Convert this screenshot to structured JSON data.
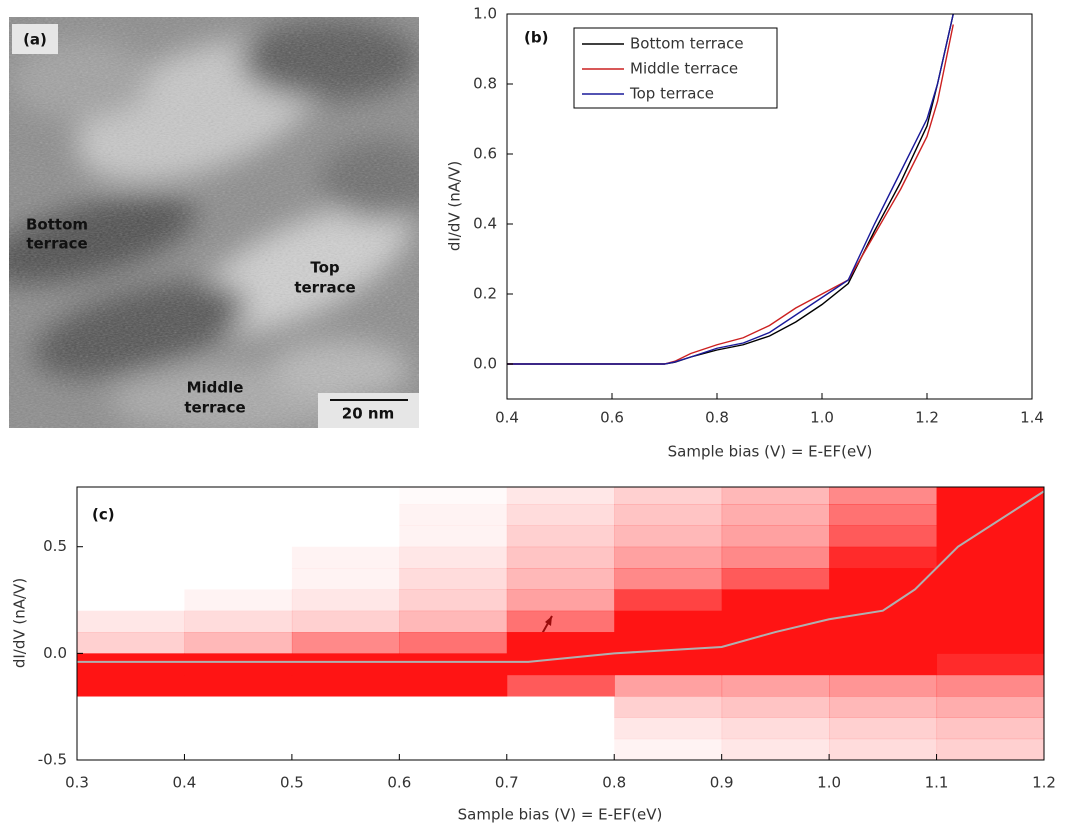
{
  "image_panel": {
    "panel_label": "(a)",
    "annotations": [
      [
        "Bottom",
        "terrace"
      ],
      [
        "Top",
        "terrace"
      ],
      [
        "Middle",
        "terrace"
      ]
    ],
    "scale_bar": "20 nm"
  },
  "chart_data": [
    {
      "type": "line",
      "panel_label": "(b)",
      "xlabel": "Sample bias (V) = E-EF(eV)",
      "ylabel": "dI/dV (nA/V)",
      "x": [
        0.4,
        0.5,
        0.6,
        0.7,
        0.72,
        0.75,
        0.8,
        0.85,
        0.9,
        0.95,
        1.0,
        1.05,
        1.1,
        1.15,
        1.2,
        1.22,
        1.25
      ],
      "series": [
        {
          "name": "Bottom terrace",
          "color": "#000000",
          "values": [
            0,
            0,
            0,
            0,
            0.005,
            0.02,
            0.04,
            0.055,
            0.08,
            0.12,
            0.17,
            0.23,
            0.38,
            0.52,
            0.68,
            0.8,
            1.0
          ]
        },
        {
          "name": "Middle terrace",
          "color": "#cc2020",
          "values": [
            0,
            0,
            0,
            0,
            0.008,
            0.03,
            0.055,
            0.075,
            0.11,
            0.16,
            0.2,
            0.24,
            0.37,
            0.5,
            0.65,
            0.75,
            0.97
          ]
        },
        {
          "name": "Top terrace",
          "color": "#1a1a9a",
          "values": [
            0,
            0,
            0,
            0,
            0.006,
            0.02,
            0.045,
            0.06,
            0.09,
            0.14,
            0.19,
            0.24,
            0.4,
            0.55,
            0.7,
            0.8,
            1.0
          ]
        }
      ],
      "xlim": [
        0.4,
        1.4
      ],
      "ylim": [
        -0.1,
        1.0
      ],
      "xticks": [
        0.4,
        0.6,
        0.8,
        {
          "value": 1,
          "label": "1.0"
        },
        1.2,
        1.4
      ],
      "yticks": [
        {
          "value": 0,
          "label": "0.0"
        },
        0.2,
        0.4,
        0.6,
        0.8,
        {
          "value": 1,
          "label": "1.0"
        }
      ],
      "legend": "upper left"
    },
    {
      "type": "heatmap",
      "panel_label": "(c)",
      "xlabel": "Sample bias (V) = E-EF(eV)",
      "ylabel": "dI/dV (nA/V)",
      "color": "#ff1414",
      "xbins": [
        0.3,
        0.4,
        0.5,
        0.6,
        0.7,
        0.8,
        0.9,
        1.0,
        1.1,
        1.2
      ],
      "ybins": [
        -0.5,
        -0.4,
        -0.3,
        -0.2,
        -0.1,
        0.0,
        0.1,
        0.2,
        0.3,
        0.4,
        0.5,
        0.6,
        0.7,
        0.8
      ],
      "z": [
        [
          0,
          0,
          0,
          0,
          0,
          0.05,
          0.1,
          0.15,
          0.2
        ],
        [
          0,
          0,
          0,
          0,
          0,
          0.1,
          0.15,
          0.2,
          0.25
        ],
        [
          0,
          0,
          0,
          0,
          0,
          0.2,
          0.25,
          0.3,
          0.35
        ],
        [
          1,
          1,
          1,
          1,
          0.7,
          0.4,
          0.4,
          0.45,
          0.5
        ],
        [
          1,
          1,
          1,
          1,
          1,
          1,
          1,
          1,
          0.9
        ],
        [
          0.2,
          0.3,
          0.5,
          0.6,
          1,
          1,
          1,
          1,
          1
        ],
        [
          0.1,
          0.15,
          0.2,
          0.3,
          0.6,
          1,
          1,
          1,
          1
        ],
        [
          0,
          0.05,
          0.1,
          0.2,
          0.4,
          0.8,
          1,
          1,
          1
        ],
        [
          0,
          0,
          0.05,
          0.15,
          0.3,
          0.5,
          0.7,
          1,
          1
        ],
        [
          0,
          0,
          0.05,
          0.1,
          0.25,
          0.4,
          0.5,
          0.9,
          1
        ],
        [
          0,
          0,
          0,
          0.05,
          0.2,
          0.3,
          0.4,
          0.7,
          1
        ],
        [
          0,
          0,
          0,
          0.05,
          0.15,
          0.25,
          0.35,
          0.6,
          1
        ],
        [
          0,
          0,
          0,
          0.02,
          0.1,
          0.2,
          0.3,
          0.5,
          1
        ]
      ],
      "line": {
        "color": "#b0b0b0",
        "x": [
          0.3,
          0.72,
          0.8,
          0.9,
          0.95,
          1.0,
          1.05,
          1.08,
          1.12,
          1.2
        ],
        "values": [
          -0.04,
          -0.04,
          0.0,
          0.03,
          0.1,
          0.16,
          0.2,
          0.3,
          0.5,
          0.76
        ]
      },
      "xlim": [
        0.3,
        1.2
      ],
      "ylim": [
        -0.5,
        0.78
      ],
      "xticks": [
        0.3,
        0.4,
        0.5,
        0.6,
        0.7,
        0.8,
        0.9,
        {
          "value": 1,
          "label": "1.0"
        },
        1.1,
        1.2
      ],
      "yticks": [
        -0.5,
        {
          "value": 0,
          "label": "0.0"
        },
        0.5
      ]
    }
  ]
}
